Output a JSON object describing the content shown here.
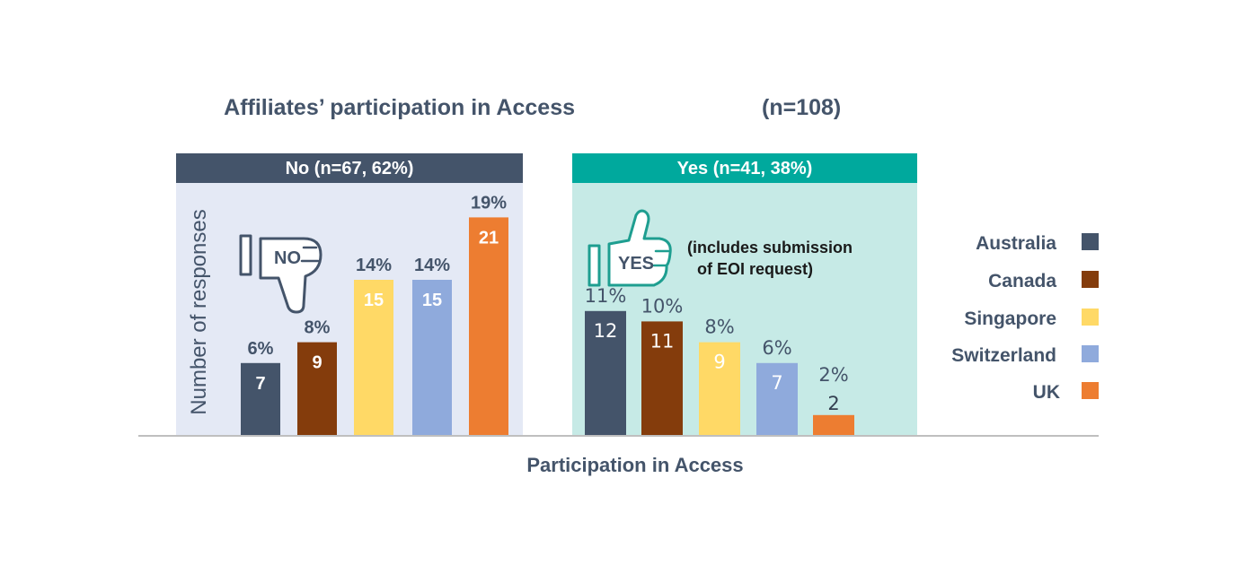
{
  "chart_data": {
    "type": "bar",
    "title": "Affiliates’ participation in Access",
    "title_n": "(n=108)",
    "xlabel": "Participation in Access",
    "ylabel": "Number of responses",
    "ylim": [
      0,
      22
    ],
    "grid": false,
    "legend_position": "right",
    "categories": [
      "Australia",
      "Canada",
      "Singapore",
      "Switzerland",
      "UK"
    ],
    "colors": [
      "#44546A",
      "#843C0C",
      "#FFD966",
      "#8FAADC",
      "#ED7D31"
    ],
    "groups": [
      {
        "header": "No (n=67, 62%)",
        "header_color": "#44546A",
        "panel_color": "#E4E9F5",
        "icon": "thumbs-down-icon",
        "icon_label": "NO",
        "icon_color": "#44546A",
        "values": [
          7,
          9,
          15,
          15,
          21
        ],
        "percents": [
          "6%",
          "8%",
          "14%",
          "14%",
          "19%"
        ]
      },
      {
        "header": "Yes (n=41, 38%)",
        "header_color": "#00A99D",
        "panel_color": "#C6EAE6",
        "icon": "thumbs-up-icon",
        "icon_label": "YES",
        "icon_color": "#1E9E90",
        "note": [
          "(includes submission",
          "of EOI request)"
        ],
        "values": [
          12,
          11,
          9,
          7,
          2
        ],
        "percents": [
          "11%",
          "10%",
          "8%",
          "6%",
          "2%"
        ]
      }
    ]
  }
}
